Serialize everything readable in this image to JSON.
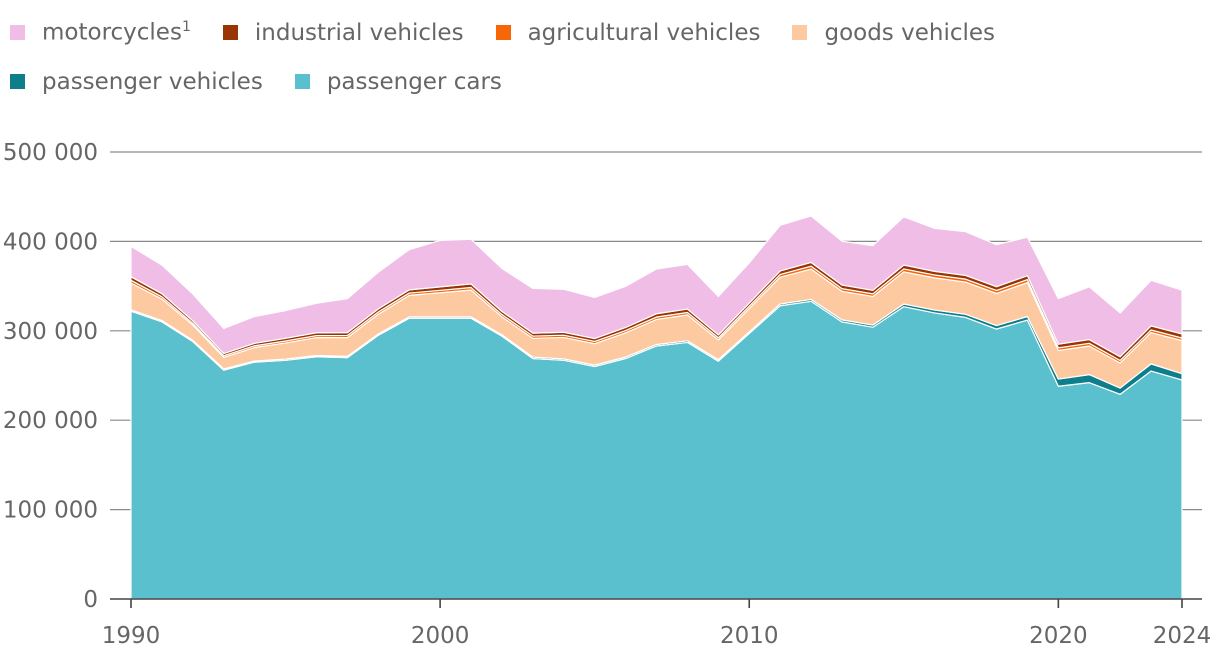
{
  "legend": [
    {
      "label": "motorcycles",
      "sup": "1",
      "color": "#efbde6"
    },
    {
      "label": "industrial vehicles",
      "color": "#993404"
    },
    {
      "label": "agricultural vehicles",
      "color": "#f76707"
    },
    {
      "label": "goods vehicles",
      "color": "#fdc9a1"
    },
    {
      "label": "passenger vehicles",
      "color": "#0f7e8c"
    },
    {
      "label": "passenger cars",
      "color": "#5ac0ce"
    }
  ],
  "chart_data": {
    "type": "area",
    "stacked": true,
    "xlim": [
      1990,
      2024
    ],
    "ylim": [
      0,
      500000
    ],
    "yticks": [
      0,
      100000,
      200000,
      300000,
      400000,
      500000
    ],
    "ytick_labels": [
      "0",
      "100 000",
      "200 000",
      "300 000",
      "400 000",
      "500 000"
    ],
    "xticks": [
      1990,
      2000,
      2010,
      2020,
      2024
    ],
    "xtick_labels": [
      "1990",
      "2000",
      "2010",
      "2020",
      "2024"
    ],
    "grid": true,
    "legend_position": "top-left",
    "x": [
      1990,
      1991,
      1992,
      1993,
      1994,
      1995,
      1996,
      1997,
      1998,
      1999,
      2000,
      2001,
      2002,
      2003,
      2004,
      2005,
      2006,
      2007,
      2008,
      2009,
      2010,
      2011,
      2012,
      2013,
      2014,
      2015,
      2016,
      2017,
      2018,
      2019,
      2020,
      2021,
      2022,
      2023,
      2024
    ],
    "series": [
      {
        "name": "passenger cars",
        "color": "#5ac0ce",
        "values": [
          322000,
          310000,
          288000,
          256000,
          265000,
          267000,
          271000,
          270000,
          295000,
          314000,
          314000,
          314000,
          294000,
          269000,
          267000,
          260000,
          269000,
          283000,
          287000,
          266000,
          297000,
          328000,
          333000,
          310000,
          304000,
          327000,
          320000,
          315000,
          302000,
          312000,
          238000,
          242000,
          229000,
          255000,
          245000
        ]
      },
      {
        "name": "passenger vehicles",
        "color": "#0f7e8c",
        "values": [
          1500,
          1500,
          1400,
          1300,
          1300,
          1400,
          1400,
          1400,
          1500,
          1600,
          1600,
          1600,
          1600,
          1600,
          1600,
          1600,
          1700,
          1700,
          1800,
          1800,
          1900,
          2000,
          2100,
          2200,
          2400,
          3000,
          3200,
          3500,
          3800,
          4000,
          8000,
          9000,
          7000,
          8000,
          7000
        ]
      },
      {
        "name": "goods vehicles",
        "color": "#fdc9a1",
        "values": [
          30000,
          24000,
          17000,
          13000,
          15000,
          18000,
          20000,
          21000,
          22000,
          24000,
          27000,
          30000,
          20000,
          21000,
          24000,
          24000,
          27000,
          28000,
          29000,
          22000,
          26000,
          30000,
          34000,
          32000,
          32000,
          36000,
          36000,
          36000,
          36000,
          38000,
          32000,
          32000,
          28000,
          35000,
          37000
        ]
      },
      {
        "name": "agricultural vehicles",
        "color": "#f76707",
        "values": [
          3000,
          2500,
          2000,
          1800,
          2000,
          2200,
          2300,
          2400,
          2500,
          2600,
          2700,
          2800,
          2600,
          2500,
          2500,
          2500,
          2600,
          2700,
          2700,
          2400,
          2600,
          3000,
          3200,
          3000,
          3000,
          3200,
          3300,
          3300,
          3300,
          3300,
          3000,
          3000,
          2800,
          3000,
          3000
        ]
      },
      {
        "name": "industrial vehicles",
        "color": "#993404",
        "values": [
          4000,
          3500,
          2800,
          2500,
          2700,
          3000,
          3100,
          3200,
          3500,
          3600,
          3800,
          4000,
          3500,
          3300,
          3300,
          3200,
          3400,
          3700,
          3800,
          3200,
          3500,
          4000,
          4200,
          4000,
          3900,
          4300,
          4000,
          4100,
          4200,
          4400,
          4000,
          4200,
          4200,
          4500,
          4500
        ]
      },
      {
        "name": "motorcycles",
        "sup": "1",
        "color": "#efbde6",
        "values": [
          34000,
          32000,
          30000,
          28000,
          30000,
          31000,
          33000,
          38000,
          41000,
          45000,
          52000,
          50000,
          48000,
          50000,
          48000,
          46000,
          46000,
          50000,
          50000,
          43000,
          45000,
          51000,
          52000,
          49000,
          50000,
          54000,
          48000,
          49000,
          47000,
          43000,
          51000,
          59000,
          49000,
          51000,
          49000
        ]
      }
    ]
  }
}
